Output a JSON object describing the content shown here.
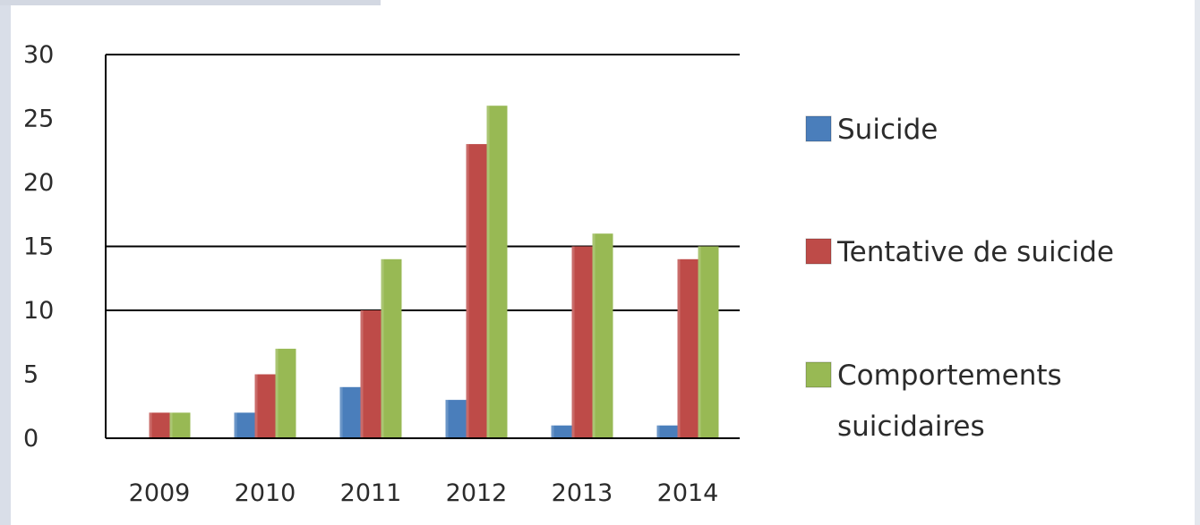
{
  "chart_data": {
    "type": "bar",
    "title": "",
    "xlabel": "",
    "ylabel": "",
    "categories": [
      "2009",
      "2010",
      "2011",
      "2012",
      "2013",
      "2014"
    ],
    "ylim": [
      0,
      30
    ],
    "yticks": [
      0,
      5,
      10,
      15,
      20,
      25,
      30
    ],
    "ytick_labels": [
      "0",
      "5",
      "10",
      "15",
      "20",
      "25",
      "30"
    ],
    "gridlines_at": [
      10,
      15,
      30
    ],
    "legend_position": "right",
    "series": [
      {
        "name": "Suicide",
        "color": "#4a7ebb",
        "values": [
          0,
          2,
          4,
          3,
          1,
          1
        ]
      },
      {
        "name": "Tentative de suicide",
        "color": "#be4b48",
        "values": [
          2,
          5,
          10,
          23,
          15,
          14
        ]
      },
      {
        "name": "Comportements suicidaires",
        "name_lines": [
          "Comportements",
          "suicidaires"
        ],
        "color": "#98b954",
        "values": [
          2,
          7,
          14,
          26,
          16,
          15
        ]
      }
    ]
  }
}
